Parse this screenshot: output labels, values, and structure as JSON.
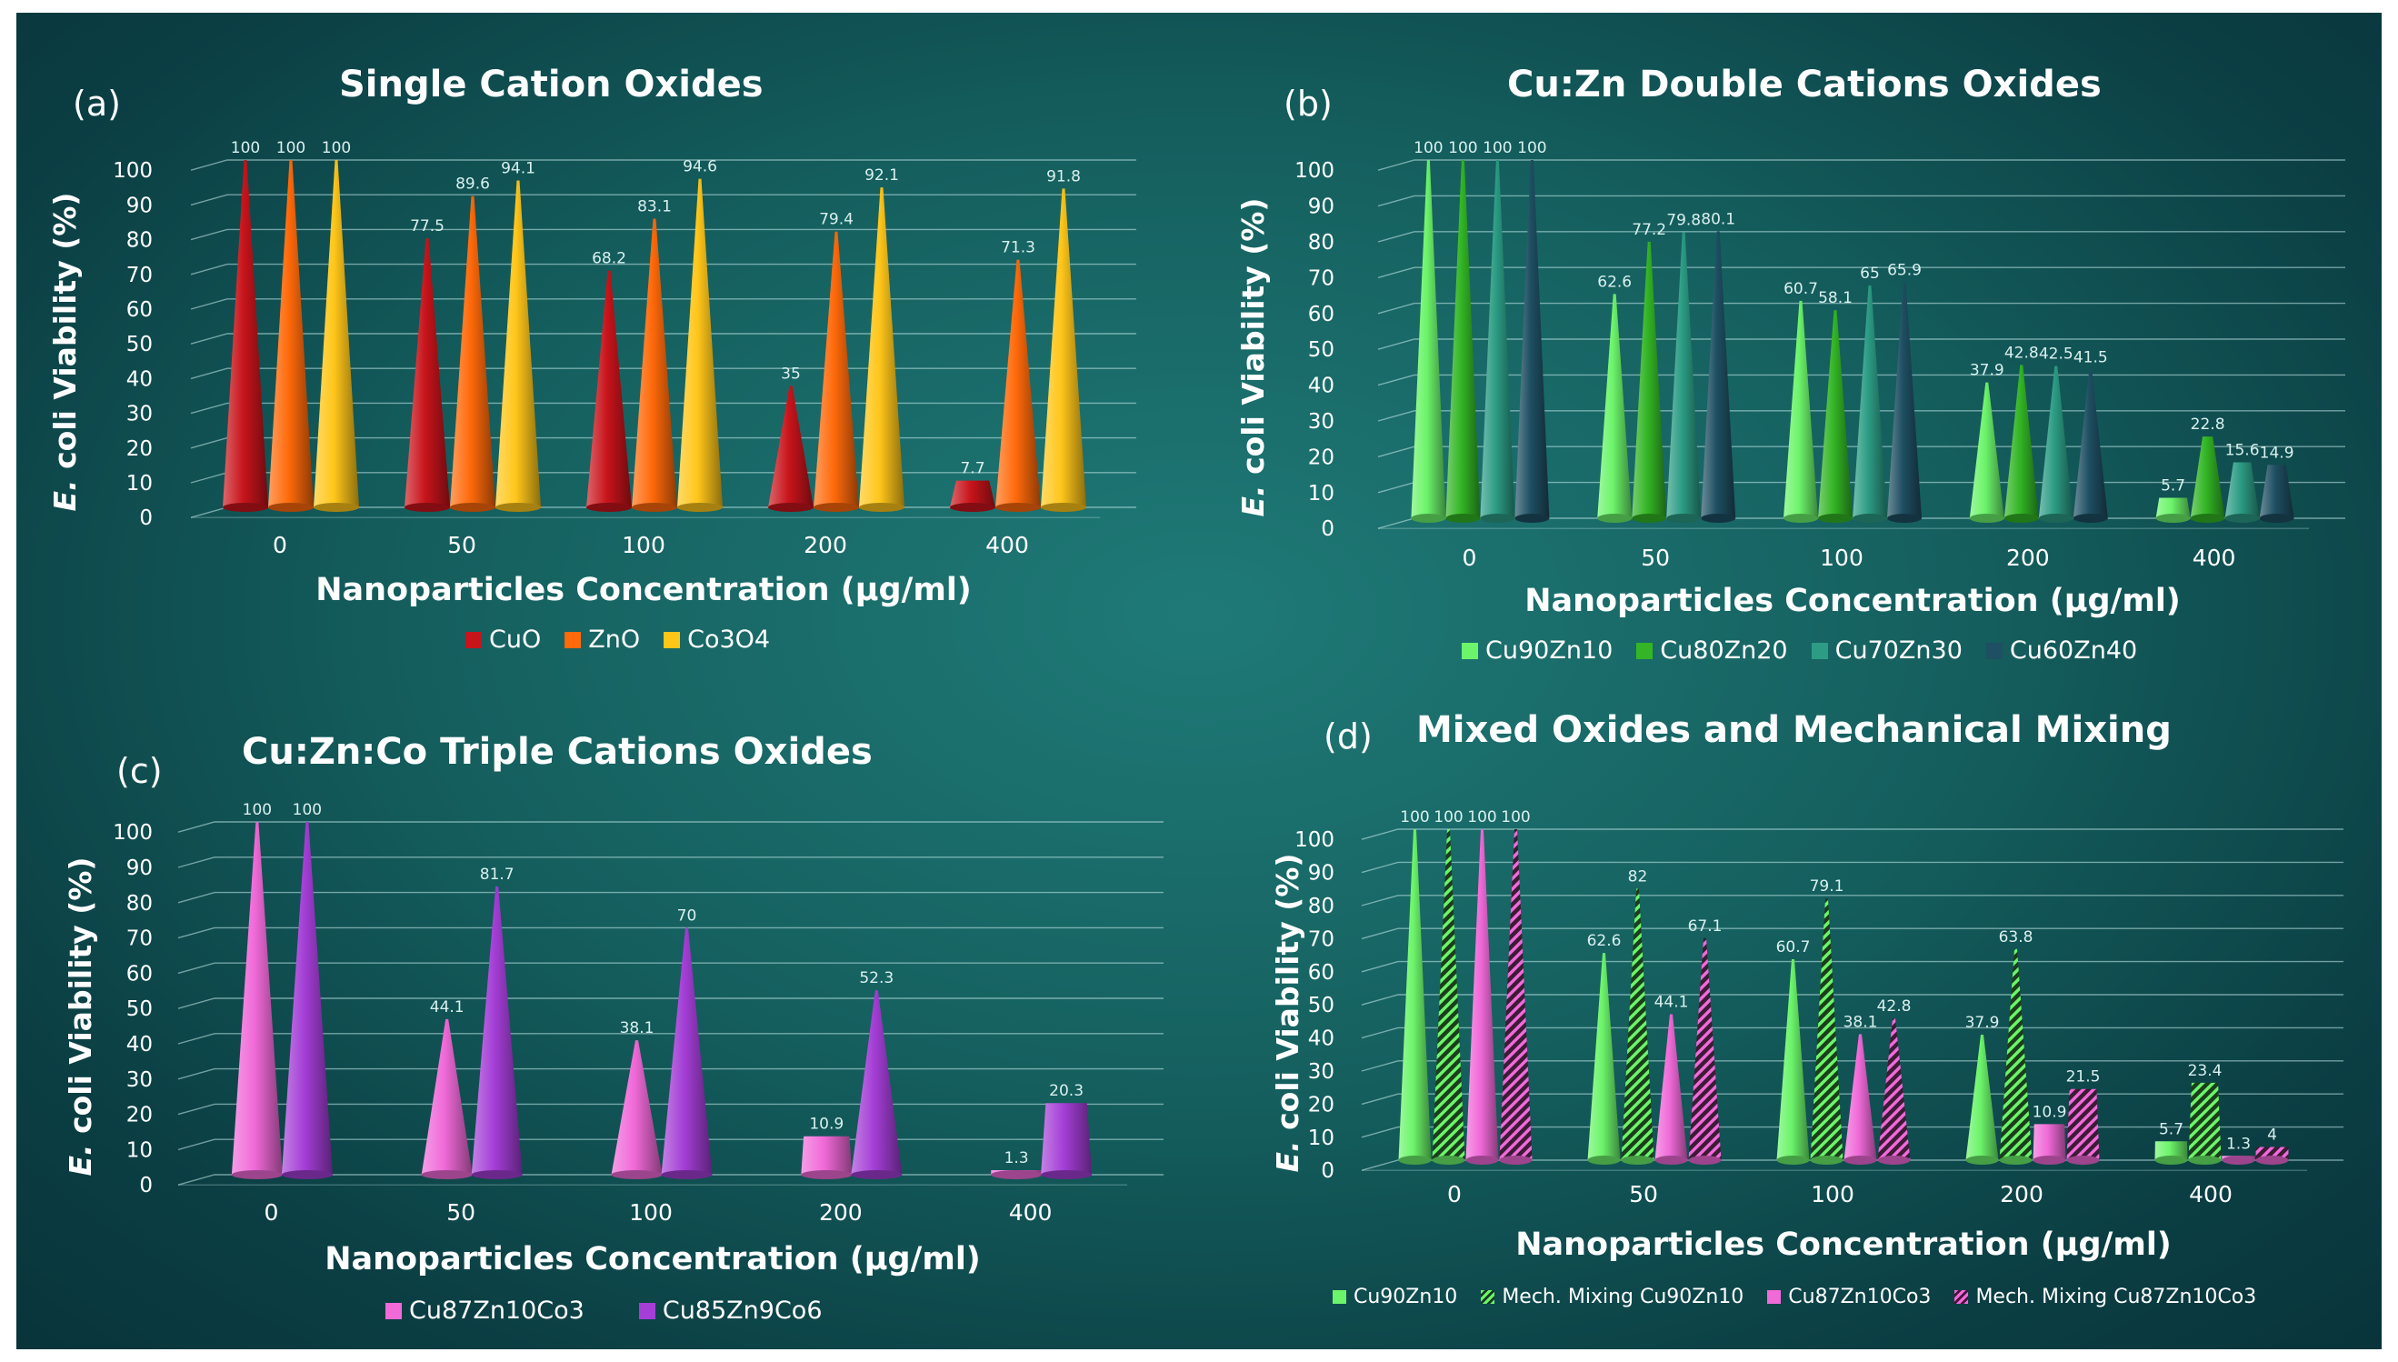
{
  "chart_data": [
    {
      "type": "bar",
      "panel_label": "(a)",
      "title": "Single Cation Oxides",
      "xlabel": "Nanoparticles Concentration (μg/ml)",
      "ylabel": "E. coli Viability (%)",
      "ylabel_italic": "E.",
      "ylabel_rest": " coli Viability (%)",
      "ylim": [
        0,
        100
      ],
      "yticks": [
        "0",
        "10",
        "20",
        "30",
        "40",
        "50",
        "60",
        "70",
        "80",
        "90",
        "100"
      ],
      "categories": [
        "0",
        "50",
        "100",
        "200",
        "400"
      ],
      "legend_position": "bottom",
      "series": [
        {
          "name": "CuO",
          "color": "#c8141b",
          "values": [
            100,
            77.5,
            68.2,
            35,
            7.7
          ],
          "labels": [
            "100",
            "77.5",
            "68.2",
            "35",
            "7.7"
          ]
        },
        {
          "name": "ZnO",
          "color": "#ff6a0a",
          "values": [
            100,
            89.6,
            83.1,
            79.4,
            71.3
          ],
          "labels": [
            "100",
            "89.6",
            "83.1",
            "79.4",
            "71.3"
          ]
        },
        {
          "name": "Co3O4",
          "color": "#ffc61a",
          "values": [
            100,
            94.1,
            94.6,
            92.1,
            91.8
          ],
          "labels": [
            "100",
            "94.1",
            "94.6",
            "92.1",
            "91.8"
          ]
        }
      ]
    },
    {
      "type": "bar",
      "panel_label": "(b)",
      "title": "Cu:Zn Double Cations Oxides",
      "xlabel": "Nanoparticles Concentration (μg/ml)",
      "ylabel": "E. coli Viability (%)",
      "ylabel_italic": "E.",
      "ylabel_rest": " coli Viability (%)",
      "ylim": [
        0,
        100
      ],
      "yticks": [
        "0",
        "10",
        "20",
        "30",
        "40",
        "50",
        "60",
        "70",
        "80",
        "90",
        "100"
      ],
      "categories": [
        "0",
        "50",
        "100",
        "200",
        "400"
      ],
      "legend_position": "bottom",
      "series": [
        {
          "name": "Cu90Zn10",
          "color": "#6cf46a",
          "values": [
            100,
            62.6,
            60.7,
            37.9,
            5.7
          ],
          "labels": [
            "100",
            "62.6",
            "60.7",
            "37.9",
            "5.7"
          ]
        },
        {
          "name": "Cu80Zn20",
          "color": "#33b525",
          "values": [
            100,
            77.2,
            58.1,
            42.8,
            22.8
          ],
          "labels": [
            "100",
            "77.2",
            "58.1",
            "42.8",
            "22.8"
          ]
        },
        {
          "name": "Cu70Zn30",
          "color": "#2c9c84",
          "values": [
            100,
            79.8,
            65,
            42.5,
            15.6
          ],
          "labels": [
            "100",
            "79.8",
            "65",
            "42.5",
            "15.6"
          ]
        },
        {
          "name": "Cu60Zn40",
          "color": "#1e4f62",
          "values": [
            100,
            80.1,
            65.9,
            41.5,
            14.9
          ],
          "labels": [
            "100",
            "80.1",
            "65.9",
            "41.5",
            "14.9"
          ]
        }
      ]
    },
    {
      "type": "bar",
      "panel_label": "(c)",
      "title": "Cu:Zn:Co Triple Cations Oxides",
      "xlabel": "Nanoparticles Concentration (μg/ml)",
      "ylabel": "E. coli Viability (%)",
      "ylabel_italic": "E.",
      "ylabel_rest": " coli Viability (%)",
      "ylim": [
        0,
        100
      ],
      "yticks": [
        "0",
        "10",
        "20",
        "30",
        "40",
        "50",
        "60",
        "70",
        "80",
        "90",
        "100"
      ],
      "categories": [
        "0",
        "50",
        "100",
        "200",
        "400"
      ],
      "legend_position": "bottom",
      "series": [
        {
          "name": "Cu87Zn10Co3",
          "color": "#f06ad8",
          "values": [
            100,
            44.1,
            38.1,
            10.9,
            1.3
          ],
          "labels": [
            "100",
            "44.1",
            "38.1",
            "10.9",
            "1.3"
          ]
        },
        {
          "name": "Cu85Zn9Co6",
          "color": "#a43ed6",
          "values": [
            100,
            81.7,
            70,
            52.3,
            20.3
          ],
          "labels": [
            "100",
            "81.7",
            "70",
            "52.3",
            "20.3"
          ]
        }
      ]
    },
    {
      "type": "bar",
      "panel_label": "(d)",
      "title": "Mixed Oxides and Mechanical Mixing",
      "xlabel": "Nanoparticles Concentration (μg/ml)",
      "ylabel": "E. coli Viability (%)",
      "ylabel_italic": "E.",
      "ylabel_rest": " coli Viability (%)",
      "ylim": [
        0,
        100
      ],
      "yticks": [
        "0",
        "10",
        "20",
        "30",
        "40",
        "50",
        "60",
        "70",
        "80",
        "90",
        "100"
      ],
      "categories": [
        "0",
        "50",
        "100",
        "200",
        "400"
      ],
      "legend_position": "bottom",
      "series": [
        {
          "name": "Cu90Zn10",
          "color": "#6cf46a",
          "hatched": false,
          "values": [
            100,
            62.6,
            60.7,
            37.9,
            5.7
          ],
          "labels": [
            "100",
            "62.6",
            "60.7",
            "37.9",
            "5.7"
          ]
        },
        {
          "name": "Mech. Mixing Cu90Zn10",
          "color": "#6cf46a",
          "hatched": true,
          "values": [
            100,
            82,
            79.1,
            63.8,
            23.4
          ],
          "labels": [
            "100",
            "82",
            "79.1",
            "63.8",
            "23.4"
          ]
        },
        {
          "name": "Cu87Zn10Co3",
          "color": "#f06ad8",
          "hatched": false,
          "values": [
            100,
            44.1,
            38.1,
            10.9,
            1.3
          ],
          "labels": [
            "100",
            "44.1",
            "38.1",
            "10.9",
            "1.3"
          ]
        },
        {
          "name": "Mech. Mixing Cu87Zn10Co3",
          "color": "#f06ad8",
          "hatched": true,
          "values": [
            100,
            67.1,
            42.8,
            21.5,
            4
          ],
          "labels": [
            "100",
            "67.1",
            "42.8",
            "21.5",
            "4"
          ]
        }
      ]
    }
  ]
}
